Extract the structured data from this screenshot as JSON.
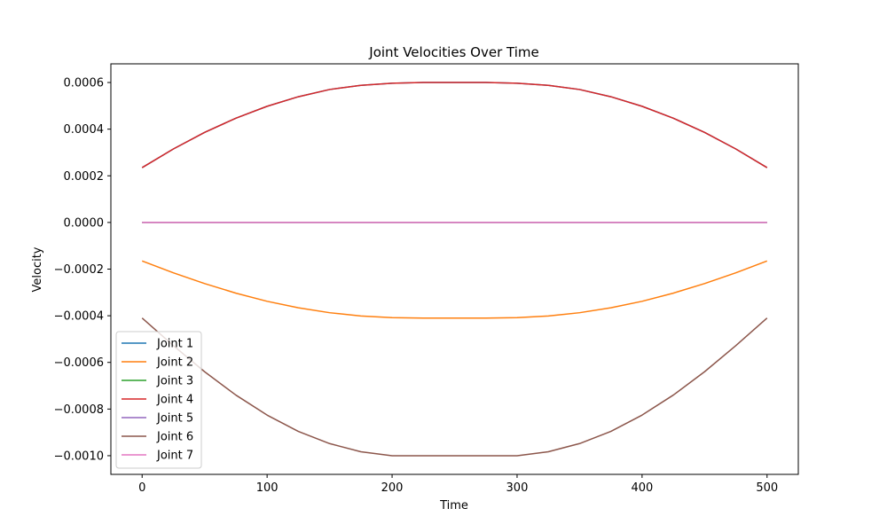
{
  "chart_data": {
    "type": "line",
    "title": "Joint Velocities Over Time",
    "xlabel": "Time",
    "ylabel": "Velocity",
    "xlim": [
      -25,
      525
    ],
    "ylim": [
      -0.00108,
      0.00068
    ],
    "xticks": [
      0,
      100,
      200,
      300,
      400,
      500
    ],
    "xtick_labels": [
      "0",
      "100",
      "200",
      "300",
      "400",
      "500"
    ],
    "yticks": [
      -0.001,
      -0.0008,
      -0.0006,
      -0.0004,
      -0.0002,
      0.0,
      0.0002,
      0.0004,
      0.0006
    ],
    "ytick_labels": [
      "−0.0010",
      "−0.0008",
      "−0.0006",
      "−0.0004",
      "−0.0002",
      "0.0000",
      "0.0002",
      "0.0004",
      "0.0006"
    ],
    "grid": false,
    "legend": {
      "position": "lower-left"
    },
    "x": [
      0,
      25,
      50,
      75,
      100,
      125,
      150,
      175,
      200,
      225,
      250,
      275,
      300,
      325,
      350,
      375,
      400,
      425,
      450,
      475,
      500
    ],
    "series": [
      {
        "name": "Joint 1",
        "color": "#1f77b4",
        "values": [
          0.000235,
          0.000315,
          0.000386,
          0.000447,
          0.000498,
          0.000539,
          0.00057,
          0.000588,
          0.000597,
          0.0006,
          0.0006,
          0.0006,
          0.000597,
          0.000588,
          0.00057,
          0.000539,
          0.000498,
          0.000447,
          0.000386,
          0.000315,
          0.000235
        ]
      },
      {
        "name": "Joint 2",
        "color": "#ff7f0e",
        "values": [
          -0.000165,
          -0.000216,
          -0.000262,
          -0.000303,
          -0.000338,
          -0.000366,
          -0.000387,
          -0.000401,
          -0.000408,
          -0.00041,
          -0.00041,
          -0.00041,
          -0.000408,
          -0.000401,
          -0.000387,
          -0.000366,
          -0.000338,
          -0.000303,
          -0.000262,
          -0.000216,
          -0.000165
        ]
      },
      {
        "name": "Joint 3",
        "color": "#2ca02c",
        "values": [
          0,
          0,
          0,
          0,
          0,
          0,
          0,
          0,
          0,
          0,
          0,
          0,
          0,
          0,
          0,
          0,
          0,
          0,
          0,
          0,
          0
        ]
      },
      {
        "name": "Joint 4",
        "color": "#d62728",
        "values": [
          0.000235,
          0.000315,
          0.000386,
          0.000447,
          0.000498,
          0.000539,
          0.00057,
          0.000588,
          0.000597,
          0.0006,
          0.0006,
          0.0006,
          0.000597,
          0.000588,
          0.00057,
          0.000539,
          0.000498,
          0.000447,
          0.000386,
          0.000315,
          0.000235
        ]
      },
      {
        "name": "Joint 5",
        "color": "#9467bd",
        "values": [
          0,
          0,
          0,
          0,
          0,
          0,
          0,
          0,
          0,
          0,
          0,
          0,
          0,
          0,
          0,
          0,
          0,
          0,
          0,
          0,
          0
        ]
      },
      {
        "name": "Joint 6",
        "color": "#8c564b",
        "values": [
          -0.00041,
          -0.000528,
          -0.00064,
          -0.00074,
          -0.000826,
          -0.000896,
          -0.000948,
          -0.000983,
          -0.001,
          -0.001,
          -0.001,
          -0.001,
          -0.001,
          -0.000983,
          -0.000948,
          -0.000896,
          -0.000826,
          -0.00074,
          -0.00064,
          -0.000528,
          -0.00041
        ]
      },
      {
        "name": "Joint 7",
        "color": "#e377c2",
        "values": [
          0,
          0,
          0,
          0,
          0,
          0,
          0,
          0,
          0,
          0,
          0,
          0,
          0,
          0,
          0,
          0,
          0,
          0,
          0,
          0,
          0
        ]
      }
    ]
  }
}
